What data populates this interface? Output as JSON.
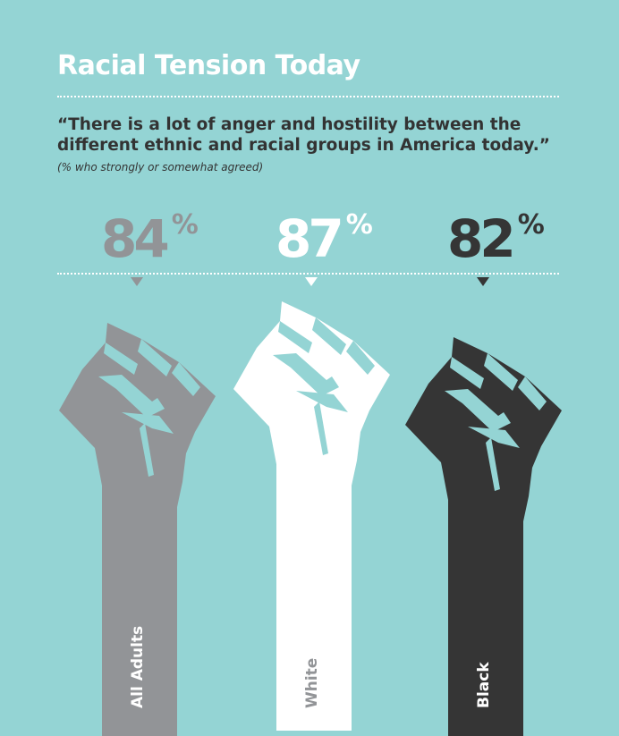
{
  "title": "Racial Tension Today",
  "quote": "“There is a lot of anger and hostility between the different ethnic and racial groups in America today.”",
  "note": "(% who strongly or somewhat agreed)",
  "chart_data": {
    "type": "bar",
    "title": "Racial Tension Today",
    "categories": [
      "All Adults",
      "White",
      "Black"
    ],
    "values": [
      84,
      87,
      82
    ],
    "unit": "%",
    "colors": [
      "#929497",
      "#ffffff",
      "#353535"
    ],
    "background": "#94d4d4"
  }
}
